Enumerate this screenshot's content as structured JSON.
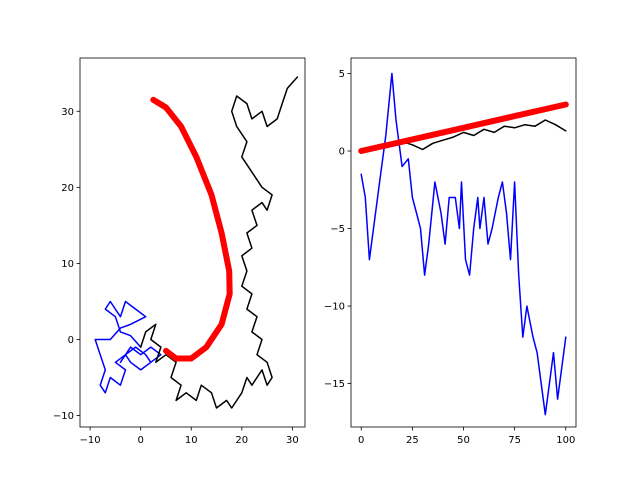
{
  "chart_data": [
    {
      "type": "line",
      "title": "",
      "xlabel": "",
      "ylabel": "",
      "xlim": [
        -12,
        32.5
      ],
      "ylim": [
        -11.5,
        37
      ],
      "xticks": [
        -10,
        0,
        10,
        20,
        30
      ],
      "yticks": [
        -10,
        0,
        10,
        20,
        30
      ],
      "grid": false,
      "legend": "none",
      "series": [
        {
          "color": "#0000ff",
          "points": [
            [
              0,
              -1
            ],
            [
              -2,
              0.5
            ],
            [
              -4,
              1
            ],
            [
              -5,
              3
            ],
            [
              -7,
              4
            ],
            [
              -6,
              5
            ],
            [
              -4,
              3
            ],
            [
              -3,
              5
            ],
            [
              -1,
              4
            ],
            [
              1,
              3
            ],
            [
              -2,
              2
            ],
            [
              -4,
              1.5
            ],
            [
              -6,
              0
            ],
            [
              -9,
              0
            ],
            [
              -8,
              -2
            ],
            [
              -7,
              -4
            ],
            [
              -8,
              -6
            ],
            [
              -7,
              -7
            ],
            [
              -6,
              -5
            ],
            [
              -4,
              -6
            ],
            [
              -3,
              -4
            ],
            [
              -5,
              -3
            ],
            [
              -3,
              -2
            ],
            [
              -2,
              -3
            ],
            [
              0,
              -4
            ],
            [
              2,
              -3
            ],
            [
              1,
              -2
            ],
            [
              -1,
              -1
            ],
            [
              -3,
              -2
            ],
            [
              -4,
              -3
            ],
            [
              -2,
              -1
            ],
            [
              0,
              -2
            ],
            [
              2,
              -1
            ],
            [
              4,
              -2
            ],
            [
              2,
              -3
            ]
          ]
        },
        {
          "color": "#000000",
          "points": [
            [
              0,
              -1
            ],
            [
              1,
              1
            ],
            [
              3,
              2
            ],
            [
              2,
              0
            ],
            [
              4,
              -1
            ],
            [
              3,
              -3
            ],
            [
              5,
              -2
            ],
            [
              7,
              -3
            ],
            [
              6,
              -5
            ],
            [
              8,
              -6
            ],
            [
              7,
              -8
            ],
            [
              9,
              -7
            ],
            [
              11,
              -8
            ],
            [
              12,
              -6
            ],
            [
              14,
              -7
            ],
            [
              15,
              -9
            ],
            [
              17,
              -8
            ],
            [
              18,
              -9
            ],
            [
              20,
              -7
            ],
            [
              21,
              -5
            ],
            [
              22,
              -6
            ],
            [
              24,
              -4
            ],
            [
              25,
              -6
            ],
            [
              26,
              -5
            ],
            [
              25,
              -3
            ],
            [
              23,
              -2
            ],
            [
              24,
              0
            ],
            [
              22,
              1
            ],
            [
              23,
              3
            ],
            [
              21,
              4
            ],
            [
              22,
              6
            ],
            [
              20,
              7
            ],
            [
              21,
              9
            ],
            [
              20,
              11
            ],
            [
              22,
              12
            ],
            [
              21,
              14
            ],
            [
              23,
              15
            ],
            [
              22,
              17
            ],
            [
              24,
              18
            ],
            [
              25,
              17
            ],
            [
              26,
              19
            ],
            [
              24,
              20
            ],
            [
              22,
              22
            ],
            [
              20,
              24
            ],
            [
              21,
              26
            ],
            [
              19,
              28
            ],
            [
              18,
              30
            ],
            [
              19,
              32
            ],
            [
              21,
              31
            ],
            [
              22,
              29
            ],
            [
              24,
              30
            ],
            [
              25,
              28
            ],
            [
              27,
              29
            ],
            [
              28,
              31
            ],
            [
              29,
              33
            ],
            [
              31,
              34.5
            ]
          ]
        },
        {
          "color": "#ff0000",
          "points": [
            [
              2.5,
              31.5
            ],
            [
              5,
              30.5
            ],
            [
              8,
              28
            ],
            [
              11,
              24
            ],
            [
              14,
              19
            ],
            [
              16,
              14
            ],
            [
              17.5,
              9
            ],
            [
              17.6,
              6
            ],
            [
              16,
              2
            ],
            [
              13,
              -1
            ],
            [
              10,
              -2.5
            ],
            [
              7,
              -2.5
            ],
            [
              5,
              -1.5
            ]
          ]
        }
      ]
    },
    {
      "type": "line",
      "title": "",
      "xlabel": "",
      "ylabel": "",
      "xlim": [
        -5,
        105
      ],
      "ylim": [
        -17.8,
        6
      ],
      "xticks": [
        0,
        25,
        50,
        75,
        100
      ],
      "yticks": [
        -15,
        -10,
        -5,
        0,
        5
      ],
      "grid": false,
      "legend": "none",
      "series": [
        {
          "color": "#0000ff",
          "points": [
            [
              0,
              -1.5
            ],
            [
              2,
              -3
            ],
            [
              4,
              -7
            ],
            [
              6,
              -5
            ],
            [
              9,
              -2
            ],
            [
              12,
              1
            ],
            [
              15,
              5
            ],
            [
              17,
              2
            ],
            [
              20,
              -1
            ],
            [
              23,
              -0.5
            ],
            [
              25,
              -3
            ],
            [
              27,
              -4
            ],
            [
              29,
              -5
            ],
            [
              31,
              -8
            ],
            [
              33,
              -6
            ],
            [
              36,
              -2
            ],
            [
              39,
              -4
            ],
            [
              41,
              -6
            ],
            [
              43,
              -3
            ],
            [
              46,
              -3
            ],
            [
              48,
              -5
            ],
            [
              49,
              -2
            ],
            [
              51,
              -7
            ],
            [
              53,
              -8
            ],
            [
              55,
              -5
            ],
            [
              57,
              -3
            ],
            [
              58,
              -5
            ],
            [
              60,
              -3
            ],
            [
              62,
              -6
            ],
            [
              64,
              -5
            ],
            [
              67,
              -3
            ],
            [
              69,
              -2
            ],
            [
              71,
              -4
            ],
            [
              73,
              -7
            ],
            [
              75,
              -2
            ],
            [
              77,
              -8
            ],
            [
              79,
              -12
            ],
            [
              81,
              -10
            ],
            [
              84,
              -12
            ],
            [
              86,
              -13
            ],
            [
              88,
              -15
            ],
            [
              90,
              -17
            ],
            [
              92,
              -15
            ],
            [
              94,
              -13
            ],
            [
              96,
              -16
            ],
            [
              98,
              -14
            ],
            [
              100,
              -12
            ]
          ]
        },
        {
          "color": "#000000",
          "points": [
            [
              0,
              0
            ],
            [
              10,
              0.3
            ],
            [
              20,
              0.6
            ],
            [
              25,
              0.4
            ],
            [
              30,
              0.1
            ],
            [
              35,
              0.5
            ],
            [
              40,
              0.7
            ],
            [
              45,
              0.9
            ],
            [
              50,
              1.2
            ],
            [
              55,
              1
            ],
            [
              60,
              1.4
            ],
            [
              65,
              1.2
            ],
            [
              70,
              1.6
            ],
            [
              75,
              1.5
            ],
            [
              80,
              1.7
            ],
            [
              85,
              1.6
            ],
            [
              90,
              2
            ],
            [
              95,
              1.7
            ],
            [
              100,
              1.3
            ]
          ]
        },
        {
          "color": "#ff0000",
          "points": [
            [
              0,
              0
            ],
            [
              25,
              0.75
            ],
            [
              50,
              1.5
            ],
            [
              75,
              2.25
            ],
            [
              100,
              3
            ]
          ]
        }
      ]
    }
  ]
}
